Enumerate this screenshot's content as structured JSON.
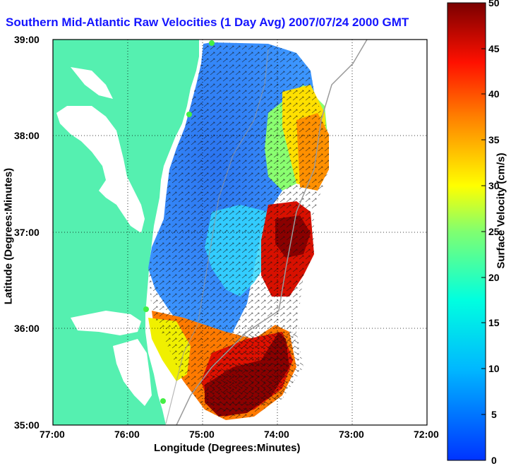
{
  "title": "Southern Mid-Atlantic Raw Velocities (1 Day Avg) 2007/07/24 2000 GMT",
  "axes": {
    "xlabel": "Longitude (Degrees:Minutes)",
    "ylabel": "Latitude (Degrees:Minutes)",
    "xticks": [
      "77:00",
      "76:00",
      "75:00",
      "74:00",
      "73:00",
      "72:00"
    ],
    "yticks": [
      "39:00",
      "38:00",
      "37:00",
      "36:00",
      "35:00"
    ],
    "xrange_deg_west": [
      77,
      72
    ],
    "yrange_deg_north": [
      35,
      39
    ],
    "grid": "dotted"
  },
  "colorbar": {
    "label": "Surface Velocity (cm/s)",
    "ticks": [
      "50",
      "45",
      "40",
      "35",
      "30",
      "25",
      "20",
      "15",
      "10",
      "5",
      "0"
    ],
    "range": [
      0,
      50
    ],
    "colormap": "jet"
  },
  "colors": {
    "land": "#55f0b0",
    "title": "#1414ff",
    "station": "#44ee44",
    "contour": "#9a9a9a"
  }
}
